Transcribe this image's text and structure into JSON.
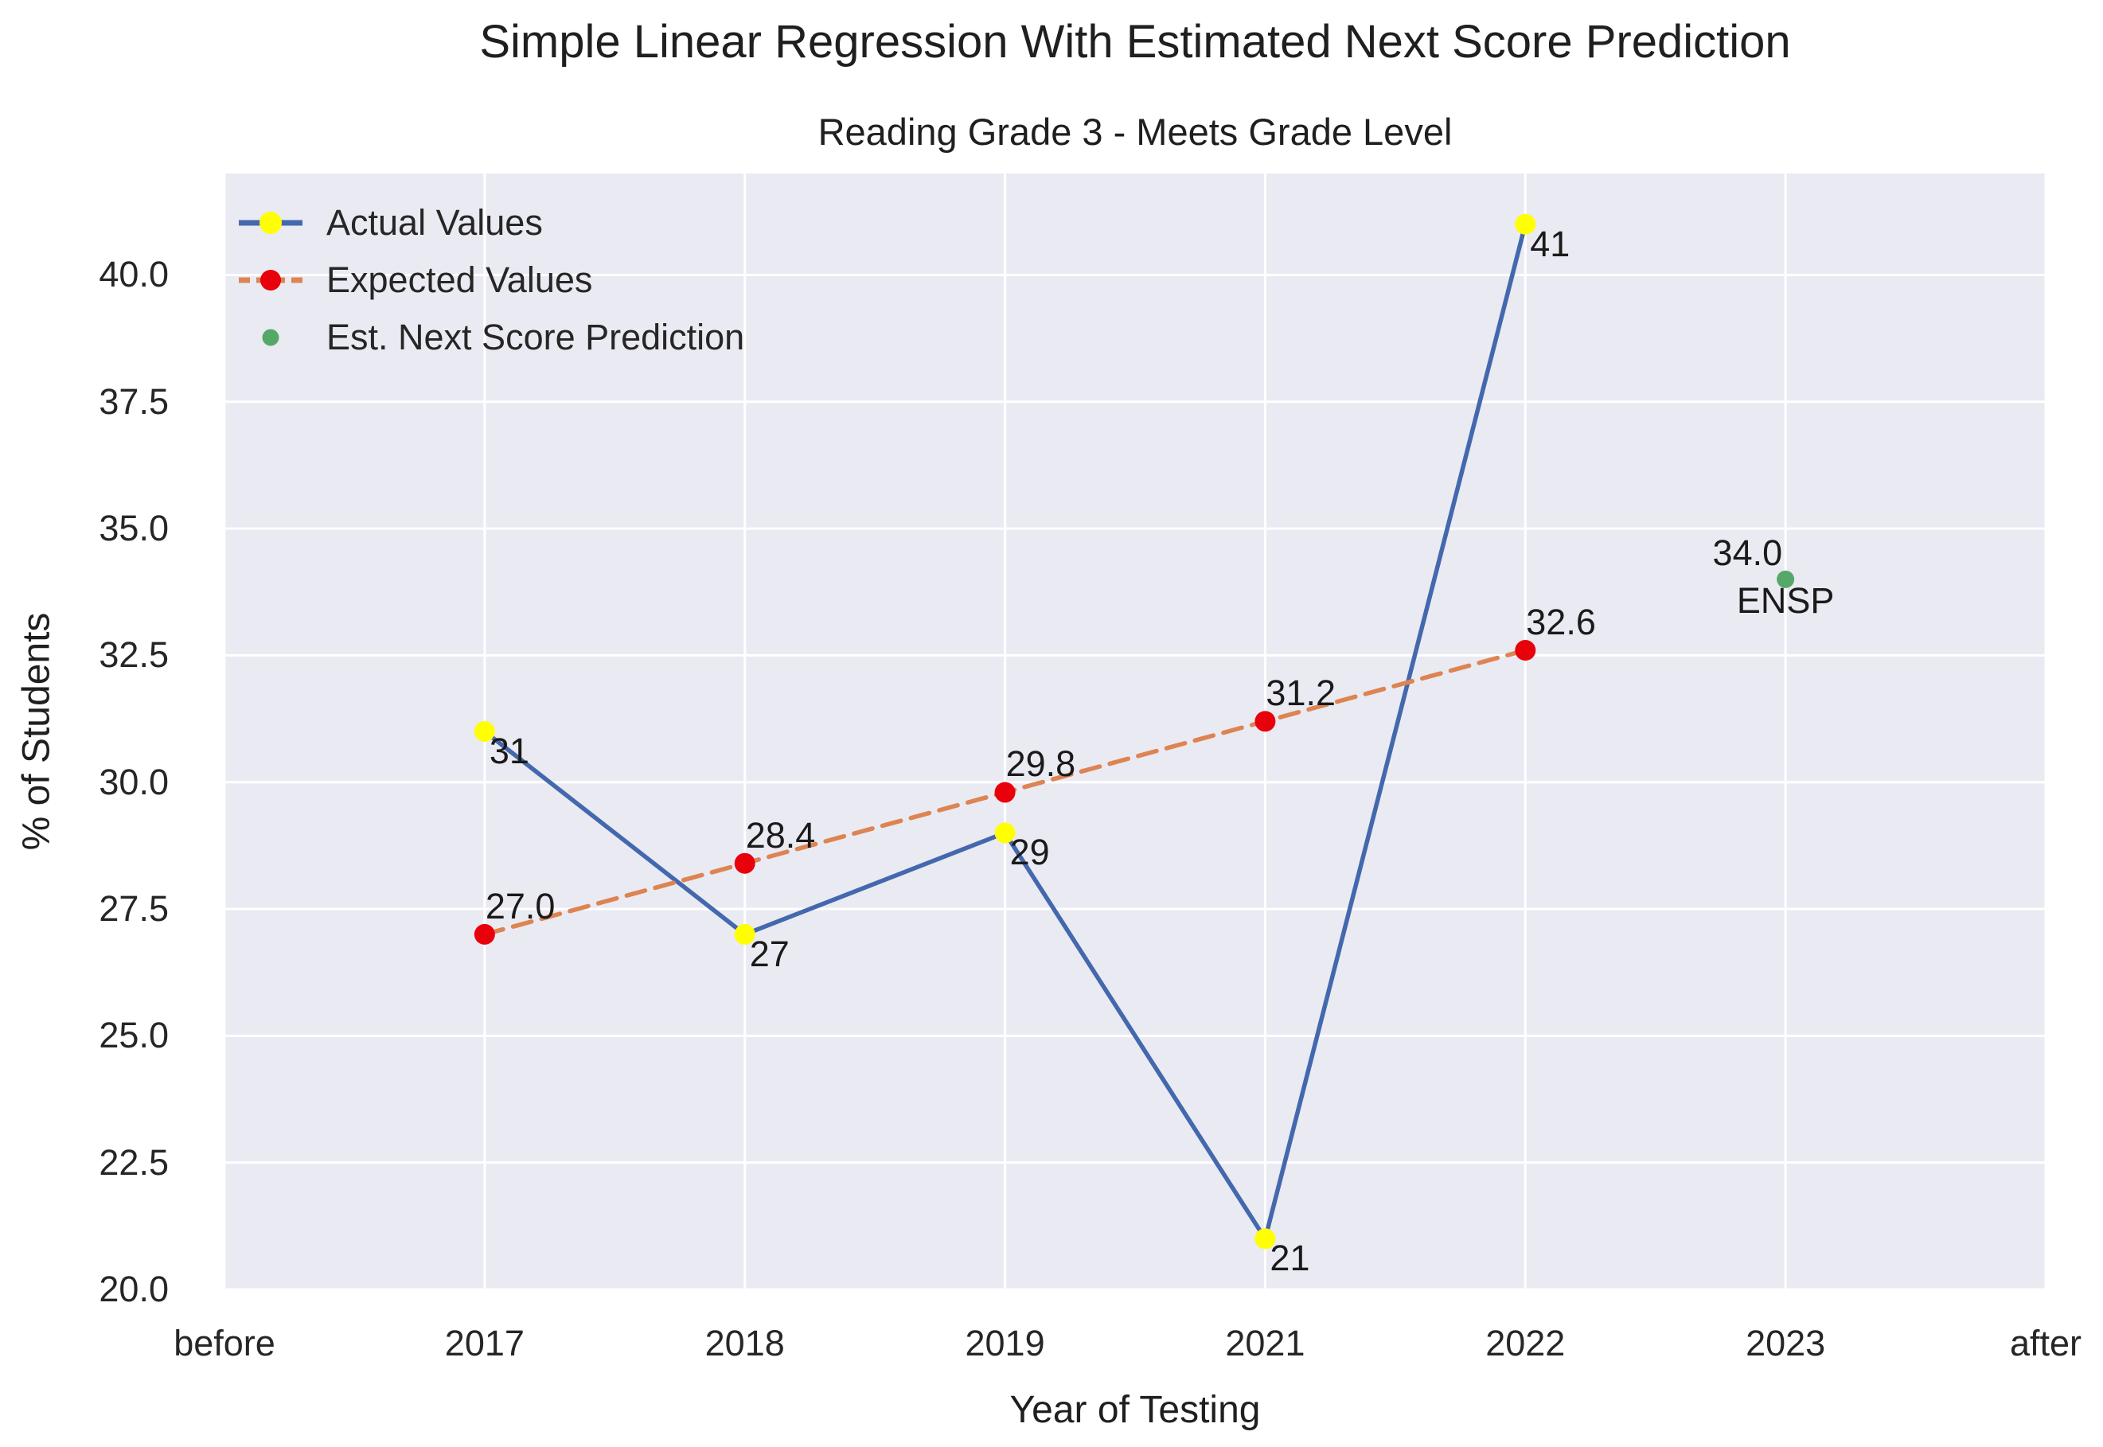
{
  "figure": {
    "title": "Simple Linear Regression With Estimated Next Score Prediction",
    "subtitle": "Reading Grade 3 - Meets Grade Level"
  },
  "axes": {
    "xlabel": "Year of Testing",
    "ylabel": "% of Students"
  },
  "legend": {
    "position": "upper-left",
    "items": [
      {
        "label": "Actual Values",
        "swatch": "line-marker",
        "line_style": "solid",
        "line_color": "#4468ad",
        "marker_color": "#ffff00",
        "marker_size": 28
      },
      {
        "label": "Expected Values",
        "swatch": "line-marker",
        "line_style": "dashed",
        "line_color": "#dd8452",
        "marker_color": "#e8000b",
        "marker_size": 26
      },
      {
        "label": "Est. Next Score Prediction",
        "swatch": "marker",
        "line_style": "none",
        "line_color": null,
        "marker_color": "#55a868",
        "marker_size": 21
      }
    ]
  },
  "chart_data": {
    "type": "line",
    "title": "Simple Linear Regression With Estimated Next Score Prediction",
    "subtitle": "Reading Grade 3 - Meets Grade Level",
    "xlabel": "Year of Testing",
    "ylabel": "% of Students",
    "x_categories": [
      "before",
      "2017",
      "2018",
      "2019",
      "2021",
      "2022",
      "2023",
      "after"
    ],
    "y_tick_labels": [
      "20.0",
      "22.5",
      "25.0",
      "27.5",
      "30.0",
      "32.5",
      "35.0",
      "37.5",
      "40.0"
    ],
    "ylim": [
      20,
      42
    ],
    "grid": true,
    "legend_position": "upper-left",
    "series": [
      {
        "name": "Actual Values",
        "x": [
          "2017",
          "2018",
          "2019",
          "2021",
          "2022"
        ],
        "values": [
          31,
          27,
          29,
          21,
          41
        ],
        "point_labels": [
          "31",
          "27",
          "29",
          "21",
          "41"
        ],
        "label_anchor": "below-right",
        "line_color": "#4468ad",
        "line_style": "solid",
        "marker_color": "#ffff00",
        "marker_radius": 13
      },
      {
        "name": "Expected Values",
        "x": [
          "2017",
          "2018",
          "2019",
          "2021",
          "2022"
        ],
        "values": [
          27.0,
          28.4,
          29.8,
          31.2,
          32.6
        ],
        "point_labels": [
          "27.0",
          "28.4",
          "29.8",
          "31.2",
          "32.6"
        ],
        "label_anchor": "above-right",
        "line_color": "#dd8452",
        "line_style": "dashed",
        "marker_color": "#e8000b",
        "marker_radius": 13
      },
      {
        "name": "Est. Next Score Prediction",
        "x": [
          "2023"
        ],
        "values": [
          34.0
        ],
        "point_labels": [
          "34.0"
        ],
        "label_anchor": "above-left",
        "extra_labels": [
          {
            "text": "ENSP",
            "x": "2023",
            "value": 34.0,
            "anchor": "below-center"
          }
        ],
        "line_color": null,
        "line_style": "none",
        "marker_color": "#55a868",
        "marker_radius": 11
      }
    ]
  },
  "colors": {
    "figure_bg": "#ffffff",
    "plot_bg": "#eaeaf2",
    "grid": "#ffffff",
    "text": "#262626"
  }
}
